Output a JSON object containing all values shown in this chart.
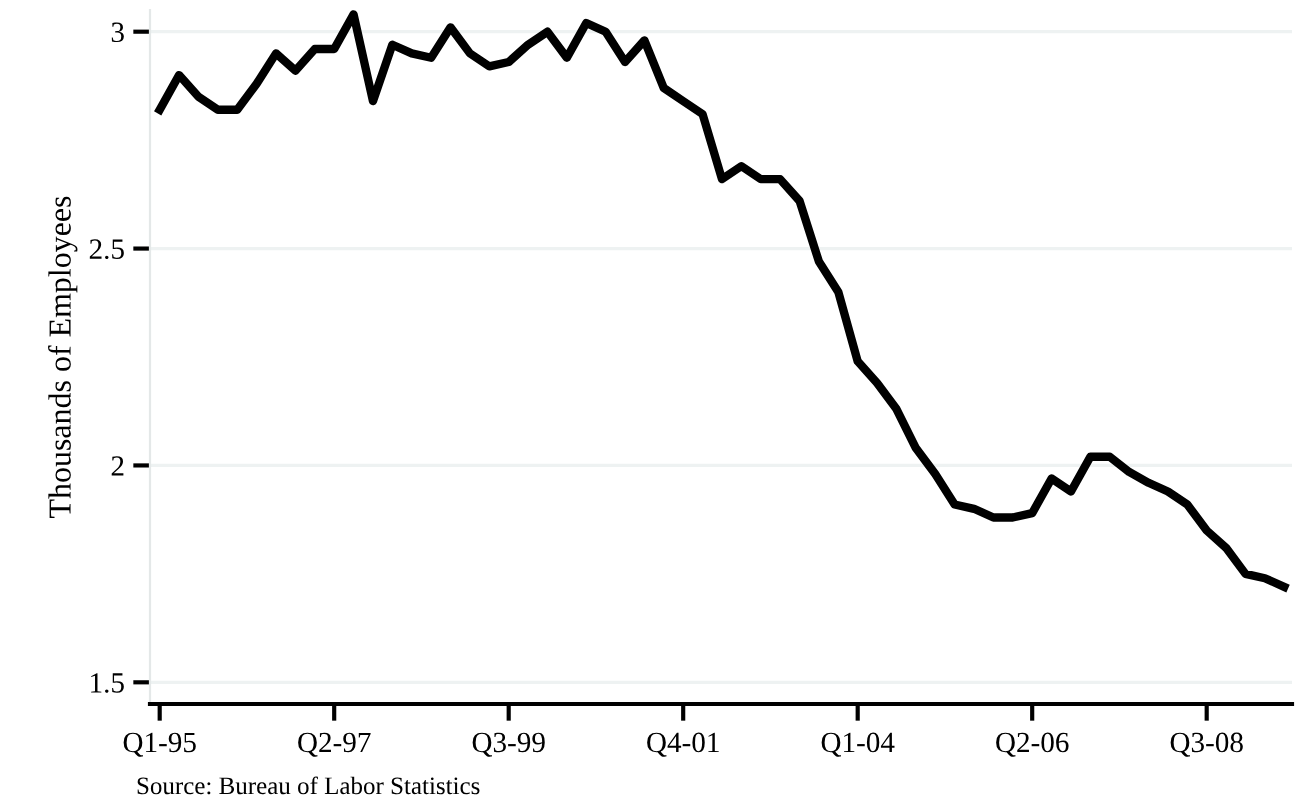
{
  "chart_data": {
    "type": "line",
    "ylabel": "Thousands of Employees",
    "categories": [
      "Q1-95",
      null,
      null,
      null,
      null,
      null,
      null,
      null,
      null,
      "Q2-97",
      null,
      null,
      null,
      null,
      null,
      null,
      null,
      null,
      "Q3-99",
      null,
      null,
      null,
      null,
      null,
      null,
      null,
      null,
      "Q4-01",
      null,
      null,
      null,
      null,
      null,
      null,
      null,
      null,
      "Q1-04",
      null,
      null,
      null,
      null,
      null,
      null,
      null,
      null,
      "Q2-06",
      null,
      null,
      null,
      null,
      null,
      null,
      null,
      null,
      "Q3-08",
      null,
      null,
      null,
      null
    ],
    "series": [
      {
        "color": "#000000",
        "values": [
          2.82,
          2.9,
          2.85,
          2.82,
          2.82,
          2.88,
          2.95,
          2.91,
          2.96,
          2.96,
          3.04,
          2.84,
          2.97,
          2.95,
          2.94,
          3.01,
          2.95,
          2.92,
          2.93,
          2.97,
          3.0,
          2.94,
          3.02,
          3.0,
          2.93,
          2.98,
          2.87,
          2.84,
          2.81,
          2.66,
          2.69,
          2.66,
          2.66,
          2.61,
          2.47,
          2.4,
          2.24,
          2.19,
          2.13,
          2.04,
          1.98,
          1.91,
          1.9,
          1.88,
          1.88,
          1.89,
          1.97,
          1.94,
          2.02,
          2.02,
          1.985,
          1.96,
          1.94,
          1.91,
          1.85,
          1.81,
          1.75,
          1.74,
          1.72
        ]
      }
    ],
    "ylim": [
      1.45,
      3.05
    ],
    "yticks": [
      {
        "value": 1.5,
        "label": "1.5"
      },
      3,
      {
        "value": 2.5,
        "label": "2.5"
      },
      2
    ],
    "grid": "y",
    "legend": false,
    "marker": "none",
    "line_style": "solid",
    "annotations": [
      "Source: Bureau of Labor Statistics"
    ]
  }
}
